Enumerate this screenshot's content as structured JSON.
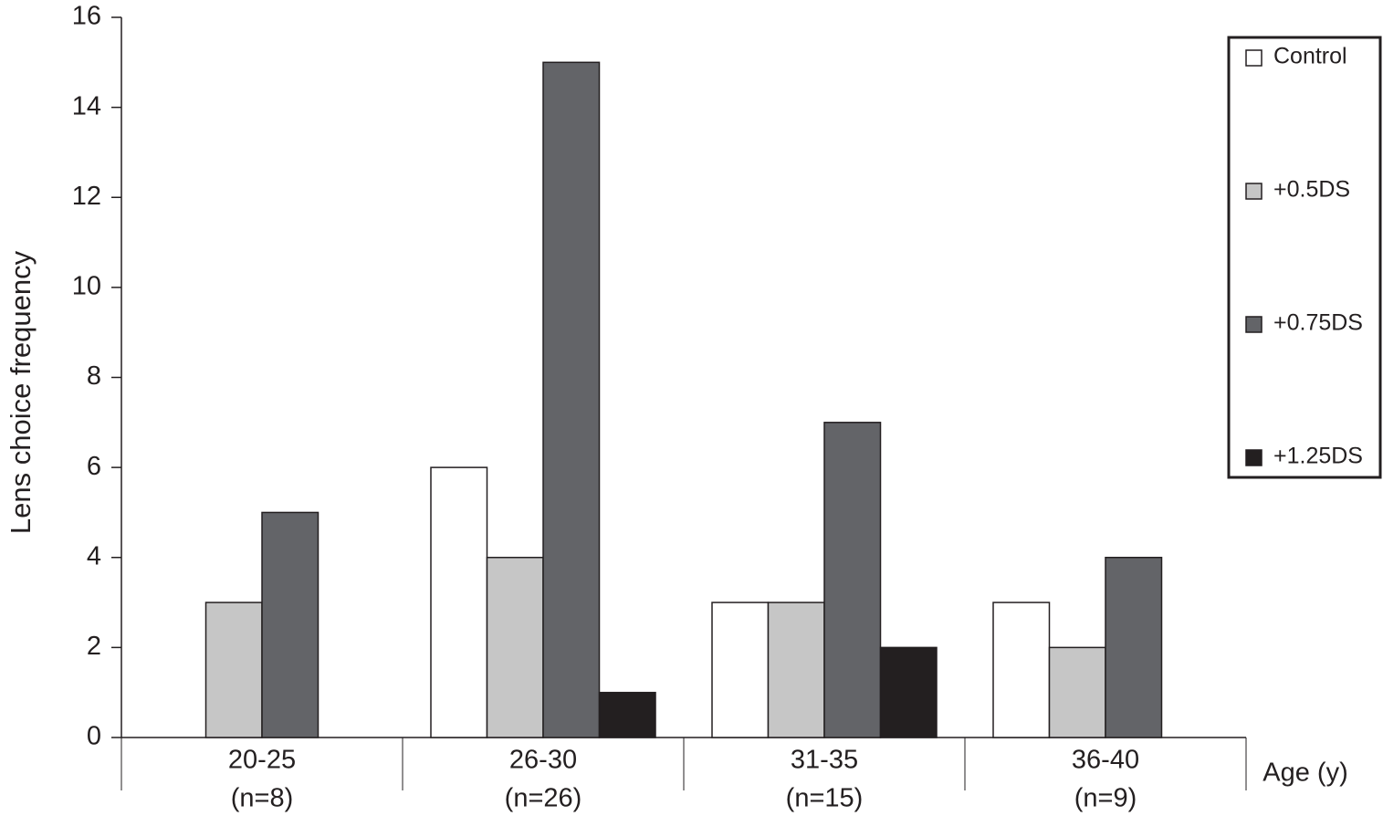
{
  "chart_data": {
    "type": "bar",
    "y_label": "Lens choice frequency",
    "x_label": "Age (y)",
    "categories": [
      [
        "20-25",
        "(n=8)"
      ],
      [
        "26-30",
        "(n=26)"
      ],
      [
        "31-35",
        "(n=15)"
      ],
      [
        "36-40",
        "(n=9)"
      ]
    ],
    "series": [
      {
        "name": "Control",
        "color": "#ffffff",
        "values": [
          0,
          6,
          3,
          3
        ]
      },
      {
        "name": "+0.5DS",
        "color": "#c6c6c6",
        "values": [
          3,
          4,
          3,
          2
        ]
      },
      {
        "name": "+0.75DS",
        "color": "#636468",
        "values": [
          5,
          15,
          7,
          4
        ]
      },
      {
        "name": "+1.25DS",
        "color": "#231f20",
        "values": [
          0,
          1,
          2,
          0
        ]
      }
    ],
    "ylim": [
      0,
      16
    ],
    "yticks": [
      0,
      2,
      4,
      6,
      8,
      10,
      12,
      14,
      16
    ],
    "legend": "right"
  }
}
